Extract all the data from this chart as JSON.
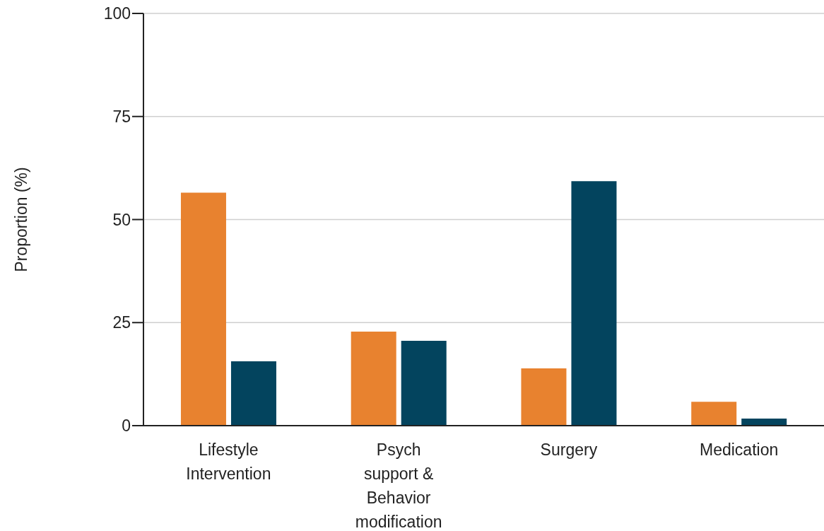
{
  "chart_data": {
    "type": "bar",
    "ylabel": "Proportion (%)",
    "categories": [
      "Lifestyle Intervention",
      "Psych support & Behavior modification",
      "Surgery",
      "Medication"
    ],
    "series": [
      {
        "color": "#e8822f",
        "values": [
          56.5,
          22.8,
          13.9,
          5.8
        ]
      },
      {
        "color": "#03445e",
        "values": [
          15.6,
          20.6,
          59.3,
          1.7
        ]
      }
    ],
    "ylim": [
      0,
      100
    ],
    "yticks": [
      0,
      25,
      50,
      75,
      100
    ],
    "grid": "y",
    "legend": false
  }
}
